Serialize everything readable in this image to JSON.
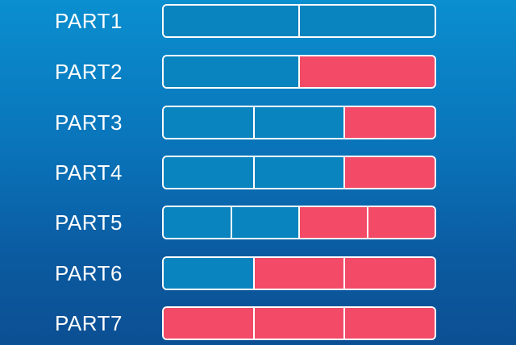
{
  "colors": {
    "empty": "#0a84be",
    "filled": "#f24a67",
    "outline": "#ffffff"
  },
  "parts": [
    {
      "label": "PART1",
      "segments": [
        "empty",
        "empty"
      ]
    },
    {
      "label": "PART2",
      "segments": [
        "empty",
        "filled"
      ]
    },
    {
      "label": "PART3",
      "segments": [
        "empty",
        "empty",
        "filled"
      ]
    },
    {
      "label": "PART4",
      "segments": [
        "empty",
        "empty",
        "filled"
      ]
    },
    {
      "label": "PART5",
      "segments": [
        "empty",
        "empty",
        "filled",
        "filled"
      ]
    },
    {
      "label": "PART6",
      "segments": [
        "empty",
        "filled",
        "filled"
      ]
    },
    {
      "label": "PART7",
      "segments": [
        "filled",
        "filled",
        "filled"
      ]
    }
  ]
}
